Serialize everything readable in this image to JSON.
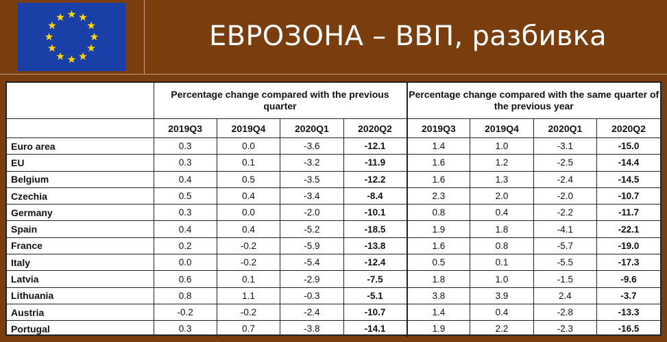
{
  "slide": {
    "title": "ЕВРОЗОНА – ВВП, разбивка"
  },
  "table": {
    "groups": [
      "Percentage change compared with the previous quarter",
      "Percentage change compared with the same quarter of the previous year"
    ],
    "quarters": [
      "2019Q3",
      "2019Q4",
      "2020Q1",
      "2020Q2"
    ],
    "rows": [
      {
        "country": "Euro area",
        "qoq": [
          "0.3",
          "0.0",
          "-3.6",
          "-12.1"
        ],
        "yoy": [
          "1.4",
          "1.0",
          "-3.1",
          "-15.0"
        ]
      },
      {
        "country": "EU",
        "qoq": [
          "0.3",
          "0.1",
          "-3.2",
          "-11.9"
        ],
        "yoy": [
          "1.6",
          "1.2",
          "-2.5",
          "-14.4"
        ]
      },
      {
        "country": "Belgium",
        "qoq": [
          "0.4",
          "0.5",
          "-3.5",
          "-12.2"
        ],
        "yoy": [
          "1.6",
          "1.3",
          "-2.4",
          "-14.5"
        ]
      },
      {
        "country": "Czechia",
        "qoq": [
          "0.5",
          "0.4",
          "-3.4",
          "-8.4"
        ],
        "yoy": [
          "2.3",
          "2.0",
          "-2.0",
          "-10.7"
        ]
      },
      {
        "country": "Germany",
        "qoq": [
          "0.3",
          "0.0",
          "-2.0",
          "-10.1"
        ],
        "yoy": [
          "0.8",
          "0.4",
          "-2.2",
          "-11.7"
        ]
      },
      {
        "country": "Spain",
        "qoq": [
          "0.4",
          "0.4",
          "-5.2",
          "-18.5"
        ],
        "yoy": [
          "1.9",
          "1.8",
          "-4.1",
          "-22.1"
        ]
      },
      {
        "country": "France",
        "qoq": [
          "0.2",
          "-0.2",
          "-5.9",
          "-13.8"
        ],
        "yoy": [
          "1.6",
          "0.8",
          "-5.7",
          "-19.0"
        ]
      },
      {
        "country": "Italy",
        "qoq": [
          "0.0",
          "-0.2",
          "-5.4",
          "-12.4"
        ],
        "yoy": [
          "0.5",
          "0.1",
          "-5.5",
          "-17.3"
        ]
      },
      {
        "country": "Latvia",
        "qoq": [
          "0.6",
          "0.1",
          "-2.9",
          "-7.5"
        ],
        "yoy": [
          "1.8",
          "1.0",
          "-1.5",
          "-9.6"
        ]
      },
      {
        "country": "Lithuania",
        "qoq": [
          "0.8",
          "1.1",
          "-0.3",
          "-5.1"
        ],
        "yoy": [
          "3.8",
          "3.9",
          "2.4",
          "-3.7"
        ]
      },
      {
        "country": "Austria",
        "qoq": [
          "-0.2",
          "-0.2",
          "-2.4",
          "-10.7"
        ],
        "yoy": [
          "1.4",
          "0.4",
          "-2.8",
          "-13.3"
        ]
      },
      {
        "country": "Portugal",
        "qoq": [
          "0.3",
          "0.7",
          "-3.8",
          "-14.1"
        ],
        "yoy": [
          "1.9",
          "2.2",
          "-2.3",
          "-16.5"
        ]
      }
    ]
  },
  "colors": {
    "background": "#7a3e0e",
    "flag_blue": "#1a3fa6",
    "flag_star": "#ffd700"
  }
}
